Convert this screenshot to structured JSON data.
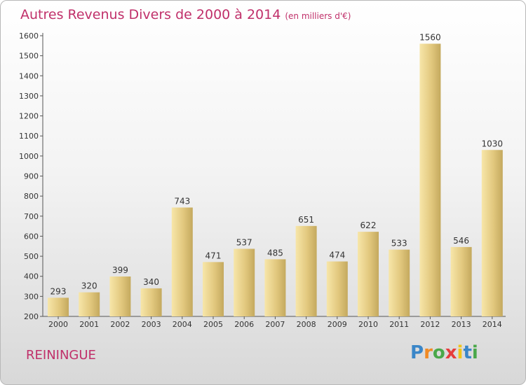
{
  "header": {
    "title": "Autres Revenus Divers de 2000 à 2014",
    "unit": "(en milliers d'€)"
  },
  "footer": {
    "location": "REININGUE",
    "logo": "Proxiti"
  },
  "colors": {
    "title": "#c0306a",
    "bar_light": "#f6e3a4",
    "bar_dark": "#c6aa5c",
    "axis": "#555555"
  },
  "chart_data": {
    "type": "bar",
    "categories": [
      "2000",
      "2001",
      "2002",
      "2003",
      "2004",
      "2005",
      "2006",
      "2007",
      "2008",
      "2009",
      "2010",
      "2011",
      "2012",
      "2013",
      "2014"
    ],
    "values": [
      293,
      320,
      399,
      340,
      743,
      471,
      537,
      485,
      651,
      474,
      622,
      533,
      1560,
      546,
      1030
    ],
    "yticks": [
      200,
      300,
      400,
      500,
      600,
      700,
      800,
      900,
      1000,
      1100,
      1200,
      1300,
      1400,
      1500,
      1600
    ],
    "ylim": [
      200,
      1600
    ],
    "grid": false,
    "legend": "none"
  }
}
